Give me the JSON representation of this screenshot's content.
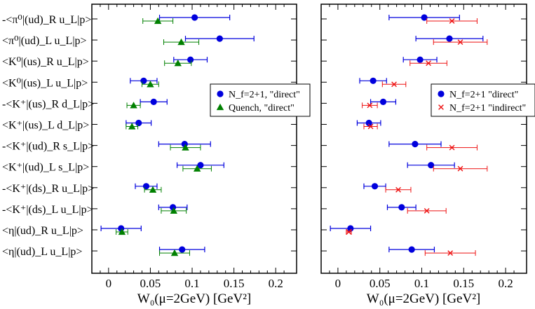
{
  "chart_data": [
    {
      "type": "scatter",
      "panel": "left",
      "orientation": "horizontal",
      "categories": [
        "-<π⁰|(ud)_R u_L|p>",
        "<π⁰|(ud)_L u_L|p>",
        "<K⁰|(us)_R u_L|p>",
        "<K⁰|(us)_L u_L|p>",
        "-<K⁺|(us)_R d_L|p>",
        "<K⁺|(us)_L d_L|p>",
        "-<K⁺|(ud)_R s_L|p>",
        "<K⁺|(ud)_L s_L|p>",
        "-<K⁺|(ds)_R u_L|p>",
        "-<K⁺|(ds)_L u_L|p>",
        "<η|(ud)_R u_L|p>",
        "<η|(ud)_L u_L|p>"
      ],
      "xlabel": "W₀(μ=2GeV) [GeV²]",
      "xlim": [
        -0.02,
        0.225
      ],
      "xticks": [
        "0",
        "0.05",
        "0.1",
        "0.15",
        "0.2"
      ],
      "legend_position": "right",
      "series": [
        {
          "name": "N_f=2+1, \"direct\"",
          "marker": "circle",
          "color": "#0000dd",
          "values": [
            0.103,
            0.133,
            0.098,
            0.042,
            0.054,
            0.036,
            0.091,
            0.11,
            0.045,
            0.077,
            0.015,
            0.088
          ],
          "errors": [
            0.042,
            0.041,
            0.02,
            0.016,
            0.016,
            0.015,
            0.031,
            0.028,
            0.013,
            0.017,
            0.024,
            0.027
          ]
        },
        {
          "name": "Quench, \"direct\"",
          "marker": "triangle",
          "color": "#008000",
          "values": [
            0.059,
            0.087,
            0.083,
            0.05,
            0.03,
            0.028,
            0.092,
            0.106,
            0.053,
            0.078,
            0.016,
            0.079
          ],
          "errors": [
            0.018,
            0.021,
            0.016,
            0.01,
            0.008,
            0.007,
            0.018,
            0.017,
            0.01,
            0.015,
            0.007,
            0.018
          ]
        }
      ]
    },
    {
      "type": "scatter",
      "panel": "right",
      "orientation": "horizontal",
      "xlabel": "W₀(μ=2GeV) [GeV²]",
      "xlim": [
        -0.02,
        0.225
      ],
      "xticks": [
        "0",
        "0.05",
        "0.1",
        "0.15",
        "0.2"
      ],
      "legend_position": "right",
      "series": [
        {
          "name": "N_f=2+1 \"direct\"",
          "marker": "circle",
          "color": "#0000dd",
          "values": [
            0.103,
            0.133,
            0.098,
            0.042,
            0.054,
            0.037,
            0.092,
            0.111,
            0.044,
            0.076,
            0.015,
            0.088
          ],
          "errors": [
            0.042,
            0.04,
            0.02,
            0.016,
            0.015,
            0.014,
            0.031,
            0.028,
            0.013,
            0.017,
            0.024,
            0.027
          ]
        },
        {
          "name": "N_f=2+1 \"indirect\"",
          "marker": "cross",
          "color": "#ee1111",
          "values": [
            0.136,
            0.146,
            0.108,
            0.067,
            0.038,
            0.039,
            0.136,
            0.146,
            0.072,
            0.106,
            0.013,
            0.134
          ],
          "errors": [
            0.03,
            0.032,
            0.022,
            0.014,
            0.009,
            0.008,
            0.03,
            0.032,
            0.015,
            0.023,
            0.003,
            0.03
          ]
        }
      ]
    }
  ]
}
